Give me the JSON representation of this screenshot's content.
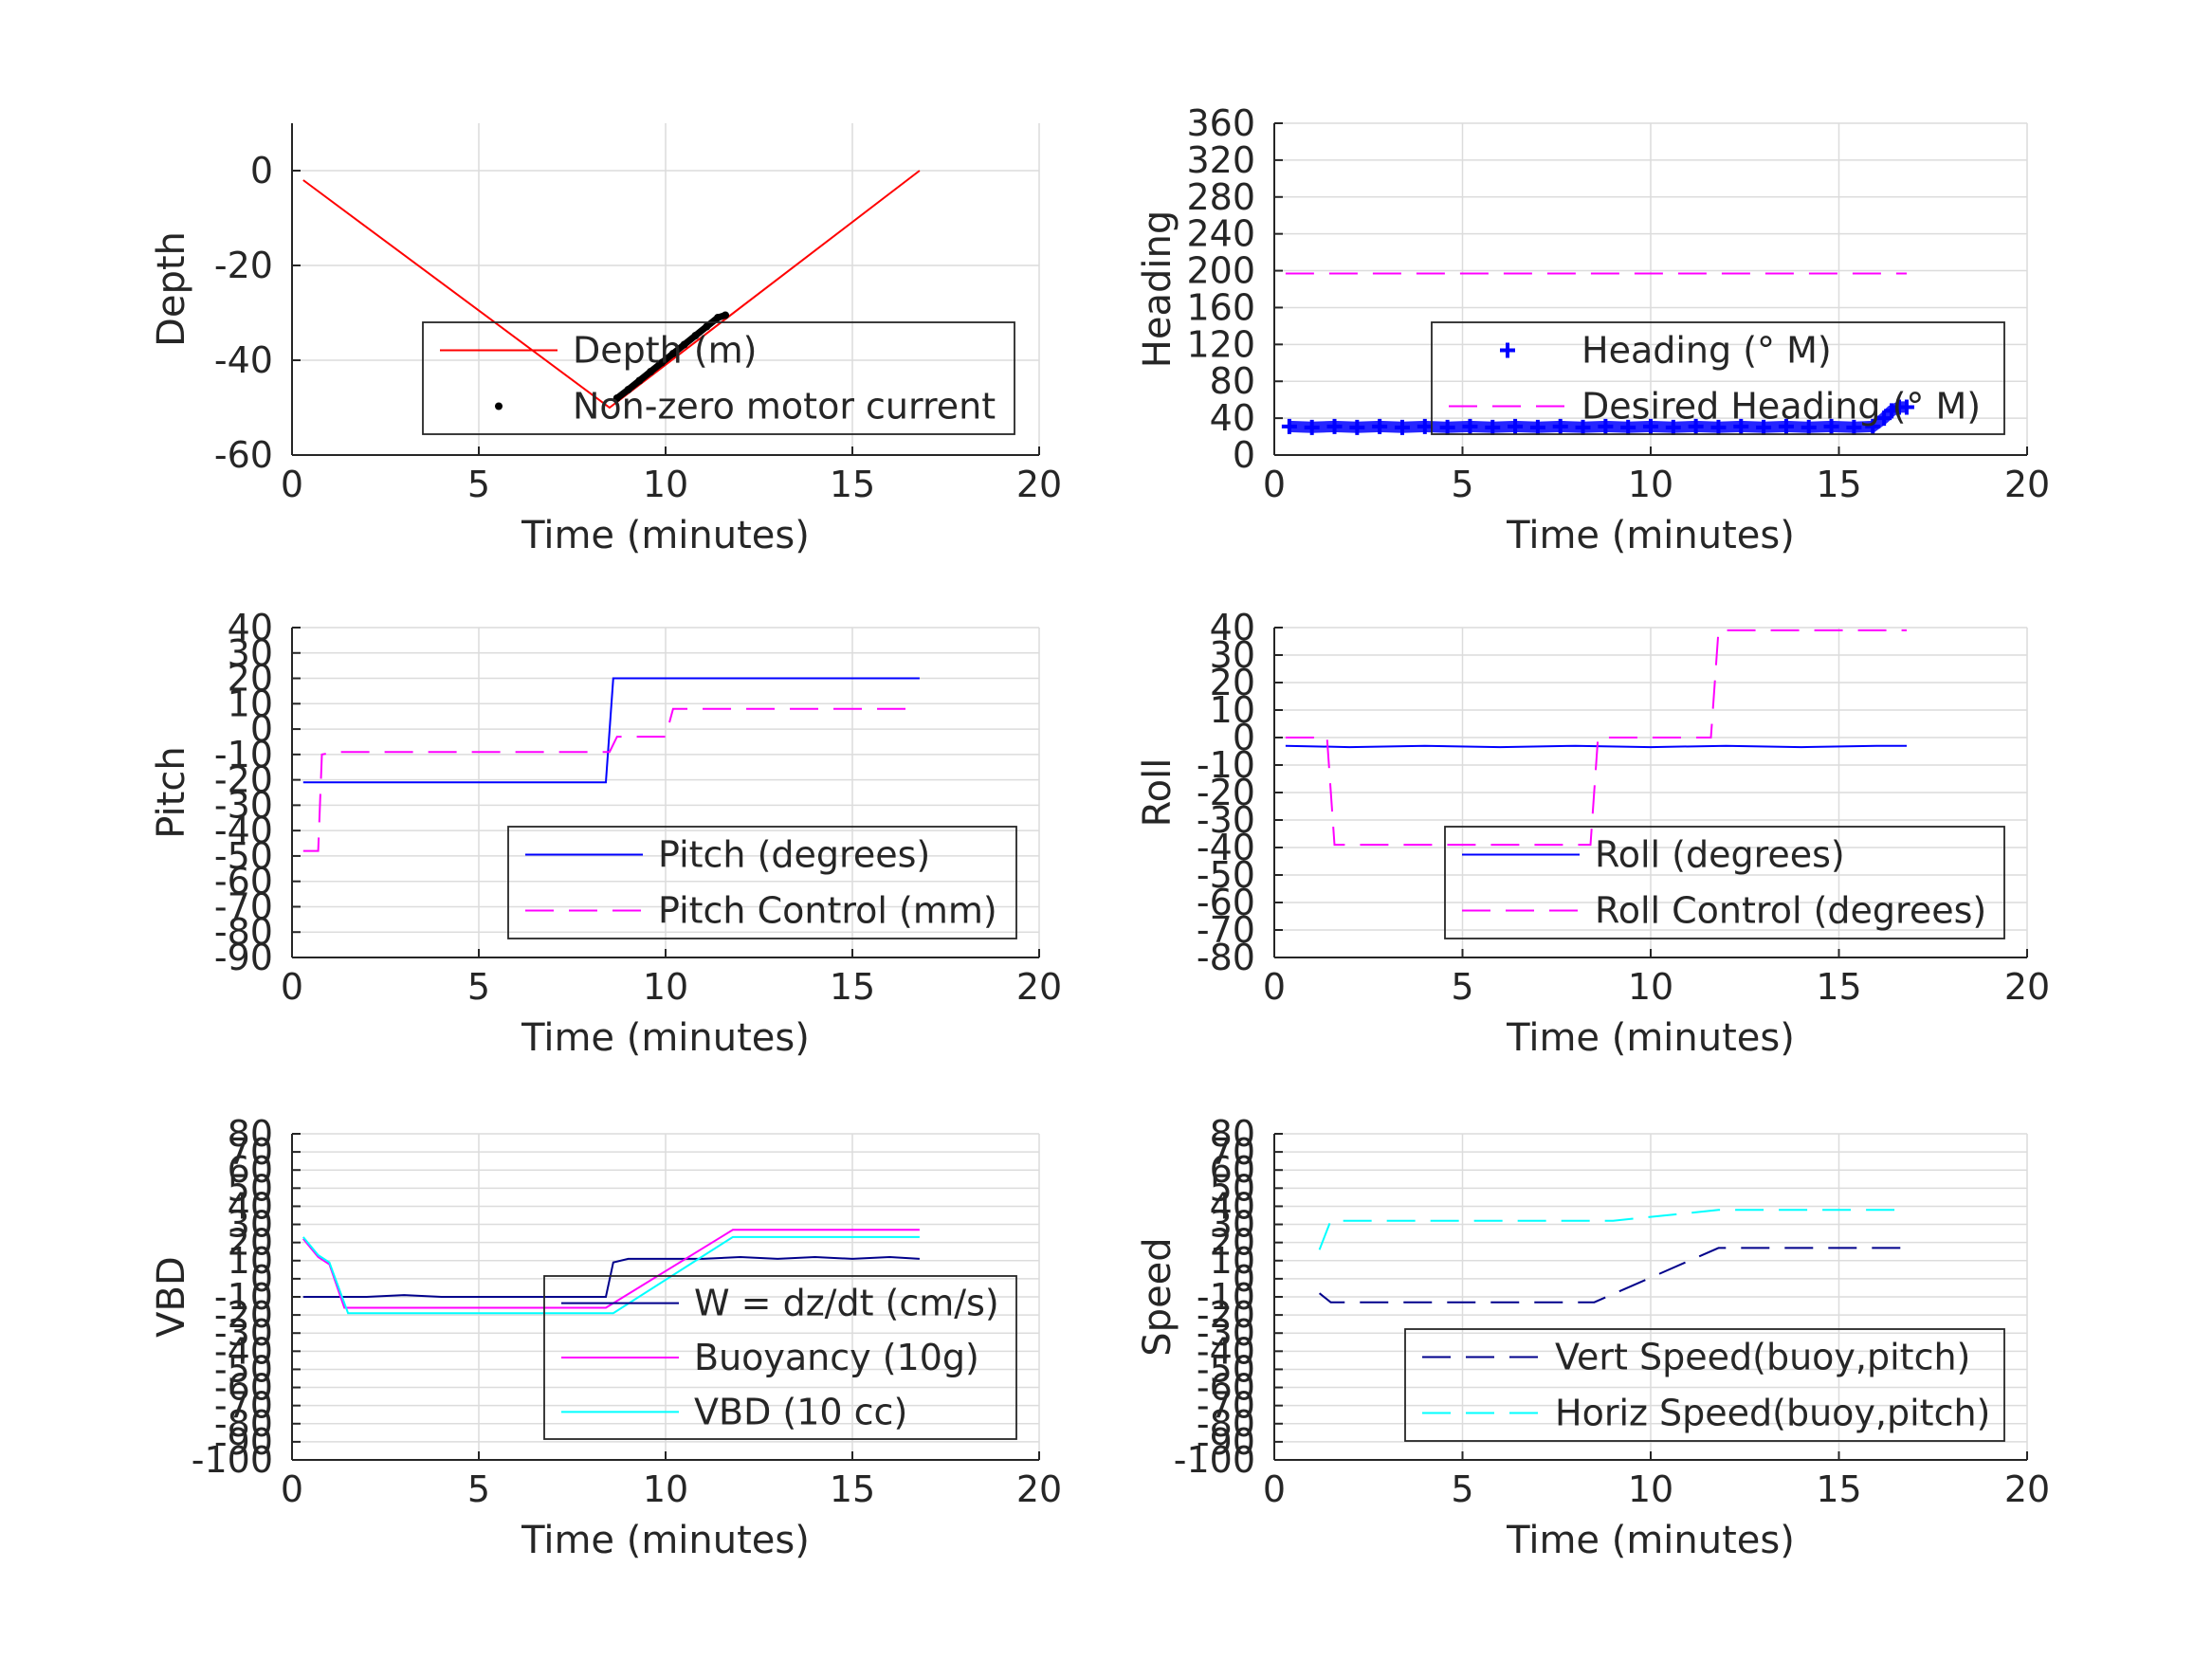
{
  "chart_data": [
    {
      "id": "depth",
      "type": "line",
      "xlabel": "Time (minutes)",
      "ylabel": "Depth",
      "xlim": [
        0,
        20
      ],
      "ylim": [
        -60,
        10
      ],
      "xticks": [
        0,
        5,
        10,
        15,
        20
      ],
      "xtick_labels": [
        "0",
        "5",
        "10",
        "15",
        "20"
      ],
      "yticks": [
        -60,
        -40,
        -20,
        0
      ],
      "ytick_labels": [
        "-60",
        "-40",
        "-20",
        "0"
      ],
      "grid": true,
      "legend_position": "lower-right",
      "series": [
        {
          "name": "Depth (m)",
          "style": "line",
          "color": "#ff0000",
          "x": [
            0.3,
            8.5,
            16.8
          ],
          "y": [
            -2,
            -50,
            0
          ]
        },
        {
          "name": "Non-zero motor current",
          "style": "dots",
          "color": "#000000",
          "x": [
            8.7,
            9.0,
            9.3,
            9.6,
            9.9,
            10.2,
            10.5,
            10.8,
            11.1,
            11.4,
            11.6
          ],
          "y": [
            -48,
            -46.2,
            -44.3,
            -42.4,
            -40.5,
            -38.6,
            -36.7,
            -34.8,
            -32.9,
            -31.0,
            -30.5
          ]
        }
      ]
    },
    {
      "id": "heading",
      "type": "scatter",
      "xlabel": "Time (minutes)",
      "ylabel": "Heading",
      "xlim": [
        0,
        20
      ],
      "ylim": [
        0,
        360
      ],
      "xticks": [
        0,
        5,
        10,
        15,
        20
      ],
      "xtick_labels": [
        "0",
        "5",
        "10",
        "15",
        "20"
      ],
      "yticks": [
        0,
        40,
        80,
        120,
        160,
        200,
        240,
        280,
        320,
        360
      ],
      "ytick_labels": [
        "0",
        "40",
        "80",
        "120",
        "160",
        "200",
        "240",
        "280",
        "320",
        "360"
      ],
      "grid": true,
      "legend_position": "lower-right",
      "series": [
        {
          "name": "Heading (° M)",
          "style": "plus",
          "color": "#0000ff",
          "x": [
            0.4,
            1.0,
            1.6,
            2.2,
            2.8,
            3.4,
            4.0,
            4.6,
            5.2,
            5.8,
            6.4,
            7.0,
            7.6,
            8.2,
            8.8,
            9.4,
            10.0,
            10.6,
            11.2,
            11.8,
            12.4,
            13.0,
            13.6,
            14.2,
            14.8,
            15.4,
            15.9,
            16.2,
            16.4,
            16.6,
            16.8
          ],
          "y": [
            31,
            30,
            31,
            30,
            31,
            30,
            31,
            30,
            31,
            30,
            31,
            30,
            31,
            30,
            31,
            30,
            31,
            30,
            31,
            30,
            31,
            30,
            31,
            30,
            31,
            30,
            31,
            40,
            48,
            52,
            52
          ]
        },
        {
          "name": "Desired Heading (° M)",
          "style": "dash",
          "color": "#ff00ff",
          "x": [
            0.3,
            16.8
          ],
          "y": [
            197,
            197
          ]
        }
      ]
    },
    {
      "id": "pitch",
      "type": "line",
      "xlabel": "Time (minutes)",
      "ylabel": "Pitch",
      "xlim": [
        0,
        20
      ],
      "ylim": [
        -90,
        40
      ],
      "xticks": [
        0,
        5,
        10,
        15,
        20
      ],
      "xtick_labels": [
        "0",
        "5",
        "10",
        "15",
        "20"
      ],
      "yticks": [
        -90,
        -80,
        -70,
        -60,
        -50,
        -40,
        -30,
        -20,
        -10,
        0,
        10,
        20,
        30,
        40
      ],
      "ytick_labels": [
        "-90",
        "-80",
        "-70",
        "-60",
        "-50",
        "-40",
        "-30",
        "-20",
        "-10",
        "0",
        "10",
        "20",
        "30",
        "40"
      ],
      "grid": true,
      "legend_position": "lower-right",
      "series": [
        {
          "name": "Pitch (degrees)",
          "style": "line",
          "color": "#0000ff",
          "x": [
            0.3,
            8.4,
            8.6,
            16.8
          ],
          "y": [
            -21,
            -21,
            20,
            20
          ]
        },
        {
          "name": "Pitch Control (mm)",
          "style": "dash",
          "color": "#ff00ff",
          "x": [
            0.3,
            0.7,
            0.8,
            1.2,
            8.5,
            8.7,
            10.0,
            10.2,
            16.8
          ],
          "y": [
            -48,
            -48,
            -10,
            -9,
            -9,
            -3,
            -3,
            8,
            8
          ]
        }
      ]
    },
    {
      "id": "roll",
      "type": "line",
      "xlabel": "Time (minutes)",
      "ylabel": "Roll",
      "xlim": [
        0,
        20
      ],
      "ylim": [
        -80,
        40
      ],
      "xticks": [
        0,
        5,
        10,
        15,
        20
      ],
      "xtick_labels": [
        "0",
        "5",
        "10",
        "15",
        "20"
      ],
      "yticks": [
        -80,
        -70,
        -60,
        -50,
        -40,
        -30,
        -20,
        -10,
        0,
        10,
        20,
        30,
        40
      ],
      "ytick_labels": [
        "-80",
        "-70",
        "-60",
        "-50",
        "-40",
        "-30",
        "-20",
        "-10",
        "0",
        "10",
        "20",
        "30",
        "40"
      ],
      "grid": true,
      "legend_position": "lower-right",
      "series": [
        {
          "name": "Roll (degrees)",
          "style": "line",
          "color": "#0000ff",
          "x": [
            0.3,
            2.0,
            4.0,
            6.0,
            8.0,
            10.0,
            12.0,
            14.0,
            16.0,
            16.8
          ],
          "y": [
            -3,
            -3.5,
            -3,
            -3.5,
            -3,
            -3.5,
            -3,
            -3.5,
            -3,
            -3
          ]
        },
        {
          "name": "Roll Control (degrees)",
          "style": "dash",
          "color": "#ff00ff",
          "x": [
            0.3,
            1.4,
            1.6,
            8.4,
            8.6,
            11.6,
            11.8,
            16.8
          ],
          "y": [
            0,
            0,
            -39,
            -39,
            0,
            0,
            39,
            39
          ]
        }
      ]
    },
    {
      "id": "vbd",
      "type": "line",
      "xlabel": "Time (minutes)",
      "ylabel": "VBD",
      "xlim": [
        0,
        20
      ],
      "ylim": [
        -100,
        80
      ],
      "xticks": [
        0,
        5,
        10,
        15,
        20
      ],
      "xtick_labels": [
        "0",
        "5",
        "10",
        "15",
        "20"
      ],
      "yticks": [
        -100,
        -90,
        -80,
        -70,
        -60,
        -50,
        -40,
        -30,
        -20,
        -10,
        0,
        10,
        20,
        30,
        40,
        50,
        60,
        70,
        80
      ],
      "ytick_labels": [
        "-100",
        "-90",
        "-80",
        "-70",
        "-60",
        "-50",
        "-40",
        "-30",
        "-20",
        "-10",
        "0",
        "10",
        "20",
        "30",
        "40",
        "50",
        "60",
        "70",
        "80"
      ],
      "grid": true,
      "legend_position": "lower-right",
      "series": [
        {
          "name": "W = dz/dt (cm/s)",
          "style": "line",
          "color": "#00008b",
          "x": [
            0.3,
            1.0,
            2.0,
            3.0,
            4.0,
            5.0,
            6.0,
            7.0,
            8.0,
            8.4,
            8.6,
            9.0,
            10.0,
            11.0,
            12.0,
            13.0,
            14.0,
            15.0,
            16.0,
            16.8
          ],
          "y": [
            -10,
            -10,
            -10,
            -9,
            -10,
            -10,
            -10,
            -10,
            -10,
            -10,
            9,
            11,
            11,
            11,
            12,
            11,
            12,
            11,
            12,
            11
          ]
        },
        {
          "name": "Buoyancy (10g)",
          "style": "line",
          "color": "#ff00ff",
          "x": [
            0.3,
            0.7,
            1.0,
            1.4,
            8.4,
            11.8,
            16.8
          ],
          "y": [
            22,
            12,
            8,
            -16,
            -16,
            27,
            27
          ]
        },
        {
          "name": "VBD (10 cc)",
          "style": "line",
          "color": "#00ffff",
          "x": [
            0.3,
            0.7,
            1.0,
            1.5,
            8.6,
            11.8,
            16.8
          ],
          "y": [
            23,
            13,
            9,
            -19,
            -19,
            23,
            23
          ]
        }
      ]
    },
    {
      "id": "speed",
      "type": "line",
      "xlabel": "Time (minutes)",
      "ylabel": "Speed",
      "xlim": [
        0,
        20
      ],
      "ylim": [
        -100,
        80
      ],
      "xticks": [
        0,
        5,
        10,
        15,
        20
      ],
      "xtick_labels": [
        "0",
        "5",
        "10",
        "15",
        "20"
      ],
      "yticks": [
        -100,
        -90,
        -80,
        -70,
        -60,
        -50,
        -40,
        -30,
        -20,
        -10,
        0,
        10,
        20,
        30,
        40,
        50,
        60,
        70,
        80
      ],
      "ytick_labels": [
        "-100",
        "-90",
        "-80",
        "-70",
        "-60",
        "-50",
        "-40",
        "-30",
        "-20",
        "-10",
        "0",
        "10",
        "20",
        "30",
        "40",
        "50",
        "60",
        "70",
        "80"
      ],
      "grid": true,
      "legend_position": "lower-right",
      "series": [
        {
          "name": "Vert Speed(buoy,pitch)",
          "style": "dash",
          "color": "#00008b",
          "x": [
            1.2,
            1.5,
            8.5,
            11.8,
            16.8
          ],
          "y": [
            -8,
            -13,
            -13,
            17,
            17
          ]
        },
        {
          "name": "Horiz Speed(buoy,pitch)",
          "style": "dash",
          "color": "#00ffff",
          "x": [
            1.2,
            1.5,
            9.0,
            11.8,
            16.8
          ],
          "y": [
            16,
            32,
            32,
            38,
            38
          ]
        }
      ]
    }
  ]
}
